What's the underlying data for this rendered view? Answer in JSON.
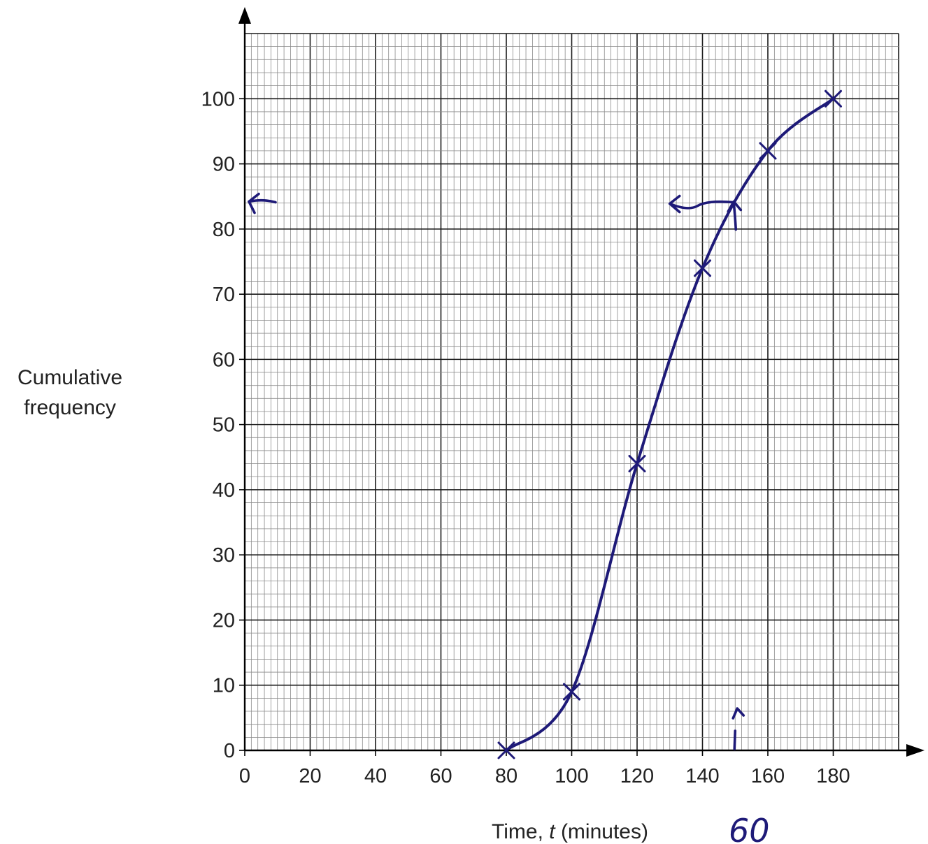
{
  "chart_data": {
    "type": "line",
    "xlabel": "Time, t (minutes)",
    "xlabel_parts": {
      "before": "Time, ",
      "var": "t",
      "after": " (minutes)"
    },
    "ylabel_lines": [
      "Cumulative",
      "frequency"
    ],
    "xlim": [
      0,
      200
    ],
    "ylim": [
      0,
      110
    ],
    "x_ticks": [
      0,
      20,
      40,
      60,
      80,
      100,
      120,
      140,
      160,
      180
    ],
    "y_ticks": [
      0,
      10,
      20,
      30,
      40,
      50,
      60,
      70,
      80,
      90,
      100
    ],
    "x_tick_labels": [
      "0",
      "20",
      "40",
      "60",
      "80",
      "100",
      "120",
      "140",
      "160",
      "180"
    ],
    "y_tick_labels": [
      "0",
      "10",
      "20",
      "30",
      "40",
      "50",
      "60",
      "70",
      "80",
      "90",
      "100"
    ],
    "grid": true,
    "series": [
      {
        "x": [
          80,
          100,
          120,
          140,
          160,
          180
        ],
        "y": [
          0,
          9,
          44,
          74,
          92,
          100
        ]
      }
    ],
    "reading": {
      "x": 150,
      "y": 84
    },
    "handwritten_note": "60",
    "ink_color": "#1e1a78"
  }
}
